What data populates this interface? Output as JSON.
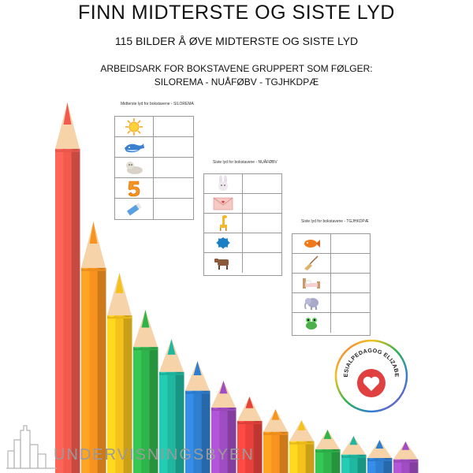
{
  "header": {
    "title": "FINN MIDTERSTE OG SISTE LYD",
    "subtitle": "115 BILDER Å ØVE MIDTERSTE OG SISTE LYD",
    "desc_line1": "ARBEIDSARK FOR BOKSTAVENE GRUPPERT SOM FØLGER:",
    "desc_line2": "SILOREMA - NUÅFØBV - TGJHKDPÆ"
  },
  "sheets": [
    {
      "title": "Midterste lyd for bokstavene - SILOREMA",
      "icons": [
        "sun-icon",
        "whale-icon",
        "seal-icon",
        "number-five-icon",
        "glue-stick-icon"
      ]
    },
    {
      "title": "Siste lyd for bokstavene - NUÅFØBV",
      "icons": [
        "rabbit-icon",
        "envelope-icon",
        "giraffe-icon",
        "paint-splash-icon",
        "cow-icon"
      ]
    },
    {
      "title": "Siste lyd for bokstavene - TGJHKDPÆ",
      "icons": [
        "fish-icon",
        "broom-icon",
        "bed-icon",
        "elephant-icon",
        "frog-icon"
      ]
    }
  ],
  "badge": {
    "text": "SPESIALPEDAGOG ELIZABETH",
    "heart_color": "#e04040"
  },
  "brand": {
    "name": "UNDERVISNINGSBYEN"
  },
  "colors": {
    "pencils": [
      "#f25a4e",
      "#f7931e",
      "#f4c21b",
      "#2fb34b",
      "#1fb7a0",
      "#2f7fd1",
      "#a04cc2",
      "#e8413c",
      "#f7931e",
      "#f4c21b",
      "#2fb34b",
      "#1fb7a0",
      "#2f7fd1",
      "#a04cc2"
    ]
  }
}
